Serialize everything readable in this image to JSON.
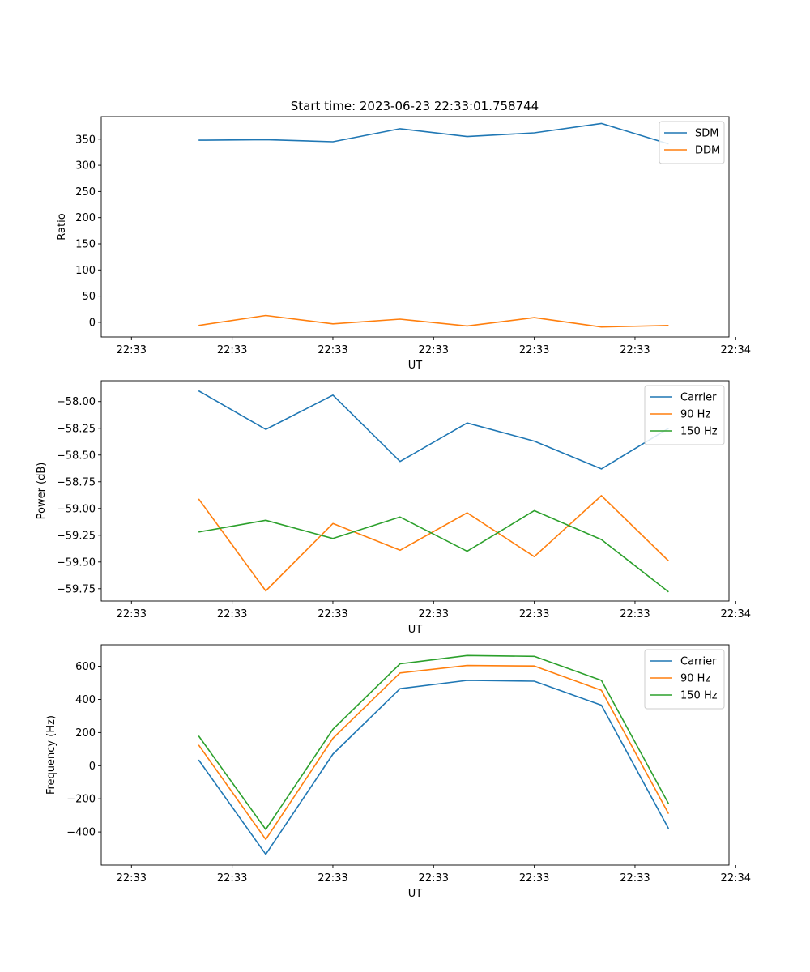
{
  "figure_title": "Start time: 2023-06-23 22:33:01.758744",
  "chart_data": [
    {
      "type": "line",
      "xlabel": "UT",
      "ylabel": "Ratio",
      "x_tick_labels": [
        "22:33",
        "22:33",
        "22:33",
        "22:33",
        "22:33",
        "22:33",
        "22:34"
      ],
      "x": [
        1,
        2,
        3,
        4,
        5,
        6,
        7,
        8
      ],
      "xlim": [
        -0.45,
        8.9
      ],
      "ylim": [
        -28,
        393
      ],
      "y_ticks": [
        0,
        50,
        100,
        150,
        200,
        250,
        300,
        350
      ],
      "legend_position": "top-right",
      "series": [
        {
          "name": "SDM",
          "color": "#1f77b4",
          "values": [
            348,
            349,
            345,
            370,
            355,
            362,
            380,
            341
          ]
        },
        {
          "name": "DDM",
          "color": "#ff7f0e",
          "values": [
            -6,
            13,
            -3,
            6,
            -7,
            9,
            -9,
            -6
          ]
        }
      ]
    },
    {
      "type": "line",
      "xlabel": "UT",
      "ylabel": "Power (dB)",
      "x_tick_labels": [
        "22:33",
        "22:33",
        "22:33",
        "22:33",
        "22:33",
        "22:33",
        "22:34"
      ],
      "x": [
        1,
        2,
        3,
        4,
        5,
        6,
        7,
        8
      ],
      "xlim": [
        -0.45,
        8.9
      ],
      "ylim": [
        -59.865,
        -57.805
      ],
      "y_ticks": [
        -59.75,
        -59.5,
        -59.25,
        -59.0,
        -58.75,
        -58.5,
        -58.25,
        -58.0
      ],
      "legend_position": "top-right",
      "series": [
        {
          "name": "Carrier",
          "color": "#1f77b4",
          "values": [
            -57.9,
            -58.26,
            -57.94,
            -58.56,
            -58.2,
            -58.37,
            -58.63,
            -58.25
          ]
        },
        {
          "name": "90 Hz",
          "color": "#ff7f0e",
          "values": [
            -58.91,
            -59.77,
            -59.14,
            -59.39,
            -59.04,
            -59.45,
            -58.88,
            -59.49
          ]
        },
        {
          "name": "150 Hz",
          "color": "#2ca02c",
          "values": [
            -59.22,
            -59.11,
            -59.28,
            -59.08,
            -59.4,
            -59.02,
            -59.29,
            -59.78
          ]
        }
      ]
    },
    {
      "type": "line",
      "xlabel": "UT",
      "ylabel": "Frequency (Hz)",
      "x_tick_labels": [
        "22:33",
        "22:33",
        "22:33",
        "22:33",
        "22:33",
        "22:33",
        "22:34"
      ],
      "x": [
        1,
        2,
        3,
        4,
        5,
        6,
        7,
        8
      ],
      "xlim": [
        -0.45,
        8.9
      ],
      "ylim": [
        -600,
        730
      ],
      "y_ticks": [
        -400,
        -200,
        0,
        200,
        400,
        600
      ],
      "legend_position": "top-right",
      "series": [
        {
          "name": "Carrier",
          "color": "#1f77b4",
          "values": [
            35,
            -535,
            70,
            465,
            515,
            510,
            365,
            -380
          ]
        },
        {
          "name": "90 Hz",
          "color": "#ff7f0e",
          "values": [
            125,
            -445,
            165,
            560,
            605,
            602,
            455,
            -290
          ]
        },
        {
          "name": "150 Hz",
          "color": "#2ca02c",
          "values": [
            180,
            -385,
            220,
            615,
            665,
            660,
            515,
            -230
          ]
        }
      ]
    }
  ]
}
